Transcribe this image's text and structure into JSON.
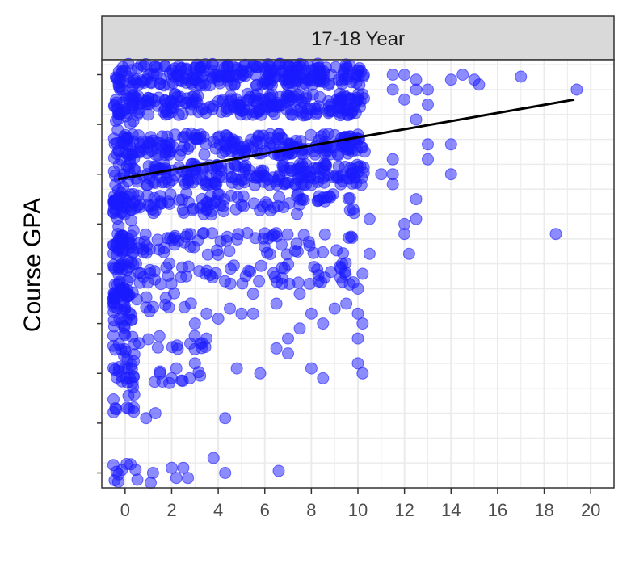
{
  "colors": {
    "points": "#1a1aff",
    "trend": "#000000",
    "strip_fill": "#d9d9d9",
    "grid": "#ebebeb",
    "panel_border": "#333333"
  },
  "chart_data": {
    "type": "scatter",
    "facet_label": "17-18 Year",
    "xlabel": "",
    "ylabel": "Course GPA",
    "xlim": [
      -1,
      21
    ],
    "ylim": [
      -0.15,
      4.15
    ],
    "x_ticks": [
      0,
      2,
      4,
      6,
      8,
      10,
      12,
      14,
      16,
      18,
      20
    ],
    "y_tick_labels_shown": false,
    "grid": true,
    "point_opacity": 0.5,
    "trend_line": {
      "x": [
        -0.3,
        19.3
      ],
      "y": [
        2.95,
        3.75
      ]
    },
    "y_levels": [
      4.0,
      3.7,
      3.3,
      3.0,
      2.7,
      2.3,
      2.0,
      1.7,
      1.3,
      1.0,
      0.7,
      0.0
    ],
    "dense_cluster": {
      "description": "heavy overlap of points for x between 0 and 10, concentrated at the upper GPA levels",
      "x_range": [
        -0.5,
        10.5
      ]
    },
    "sparse_points": [
      {
        "x": 11.5,
        "y": 4.0
      },
      {
        "x": 12.0,
        "y": 4.0
      },
      {
        "x": 12.5,
        "y": 3.95
      },
      {
        "x": 14.0,
        "y": 3.95
      },
      {
        "x": 14.5,
        "y": 4.0
      },
      {
        "x": 15.0,
        "y": 3.95
      },
      {
        "x": 15.2,
        "y": 3.9
      },
      {
        "x": 17.0,
        "y": 3.98
      },
      {
        "x": 19.4,
        "y": 3.85
      },
      {
        "x": 11.5,
        "y": 3.85
      },
      {
        "x": 12.5,
        "y": 3.85
      },
      {
        "x": 13.0,
        "y": 3.85
      },
      {
        "x": 12.0,
        "y": 3.75
      },
      {
        "x": 13.0,
        "y": 3.7
      },
      {
        "x": 12.5,
        "y": 3.55
      },
      {
        "x": 13.0,
        "y": 3.3
      },
      {
        "x": 14.0,
        "y": 3.3
      },
      {
        "x": 13.0,
        "y": 3.15
      },
      {
        "x": 14.0,
        "y": 3.0
      },
      {
        "x": 11.5,
        "y": 3.15
      },
      {
        "x": 11.5,
        "y": 3.0
      },
      {
        "x": 11.5,
        "y": 2.9
      },
      {
        "x": 12.5,
        "y": 2.75
      },
      {
        "x": 12.5,
        "y": 2.55
      },
      {
        "x": 12.0,
        "y": 2.5
      },
      {
        "x": 12.0,
        "y": 2.4
      },
      {
        "x": 12.2,
        "y": 2.2
      },
      {
        "x": 18.5,
        "y": 2.4
      },
      {
        "x": 11.0,
        "y": 3.0
      },
      {
        "x": 10.5,
        "y": 2.55
      },
      {
        "x": 10.5,
        "y": 2.2
      },
      {
        "x": 10.2,
        "y": 2.0
      },
      {
        "x": 10.0,
        "y": 1.85
      },
      {
        "x": 10.0,
        "y": 1.6
      },
      {
        "x": 10.2,
        "y": 1.5
      },
      {
        "x": 10.0,
        "y": 1.35
      },
      {
        "x": 10.2,
        "y": 1.0
      },
      {
        "x": 10.0,
        "y": 1.1
      },
      {
        "x": 9.5,
        "y": 1.7
      },
      {
        "x": 9.0,
        "y": 1.65
      },
      {
        "x": 8.5,
        "y": 1.5
      },
      {
        "x": 8.0,
        "y": 1.6
      },
      {
        "x": 7.5,
        "y": 1.45
      },
      {
        "x": 7.0,
        "y": 1.2
      },
      {
        "x": 7.0,
        "y": 1.35
      },
      {
        "x": 6.5,
        "y": 1.25
      },
      {
        "x": 8.0,
        "y": 1.05
      },
      {
        "x": 8.5,
        "y": 0.95
      },
      {
        "x": 7.5,
        "y": 1.8
      },
      {
        "x": 6.5,
        "y": 1.7
      },
      {
        "x": 5.5,
        "y": 1.8
      },
      {
        "x": 5.0,
        "y": 1.6
      },
      {
        "x": 5.5,
        "y": 1.6
      },
      {
        "x": 4.5,
        "y": 1.65
      },
      {
        "x": 4.0,
        "y": 1.55
      },
      {
        "x": 3.5,
        "y": 1.6
      },
      {
        "x": 3.0,
        "y": 1.5
      },
      {
        "x": 4.8,
        "y": 1.05
      },
      {
        "x": 5.8,
        "y": 1.0
      },
      {
        "x": 3.0,
        "y": 1.1
      },
      {
        "x": 3.5,
        "y": 1.35
      },
      {
        "x": 2.8,
        "y": 1.3
      },
      {
        "x": 4.3,
        "y": 0.55
      },
      {
        "x": 3.8,
        "y": 0.15
      },
      {
        "x": 4.3,
        "y": 0.0
      },
      {
        "x": 6.6,
        "y": 0.02
      },
      {
        "x": 2.0,
        "y": 0.05
      },
      {
        "x": 2.5,
        "y": 0.05
      },
      {
        "x": 2.2,
        "y": -0.05
      },
      {
        "x": 2.7,
        "y": -0.05
      },
      {
        "x": 1.2,
        "y": 0.0
      },
      {
        "x": 1.1,
        "y": -0.1
      },
      {
        "x": 1.3,
        "y": 0.6
      },
      {
        "x": 0.9,
        "y": 0.55
      },
      {
        "x": 2.0,
        "y": 0.95
      },
      {
        "x": 1.5,
        "y": 1.0
      },
      {
        "x": 2.2,
        "y": 1.05
      }
    ]
  }
}
